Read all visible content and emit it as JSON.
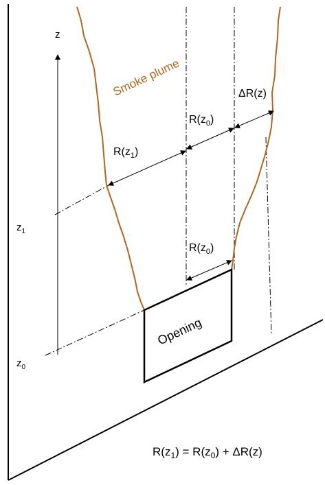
{
  "diagram": {
    "axis": {
      "name": "z"
    },
    "levels": [
      {
        "main": "z",
        "sub": "1"
      },
      {
        "main": "z",
        "sub": "0"
      }
    ],
    "plume_label": "Smoke plume",
    "opening_label": "Opening",
    "radius_labels": {
      "r_z1": {
        "pre": "R(z",
        "sub": "1",
        "post": ")"
      },
      "r_z0_upper": {
        "pre": "R(z",
        "sub": "0",
        "post": ")"
      },
      "r_z0_lower": {
        "pre": "R(z",
        "sub": "0",
        "post": ")"
      },
      "delta_r": "ΔR(z)"
    },
    "equation": {
      "a_pre": "R(z",
      "a_sub": "1",
      "a_post": ") = R(z",
      "b_sub": "0",
      "b_post": ") + ΔR(z)"
    },
    "colors": {
      "plume": "#b5651d",
      "lines": "#000000"
    }
  }
}
